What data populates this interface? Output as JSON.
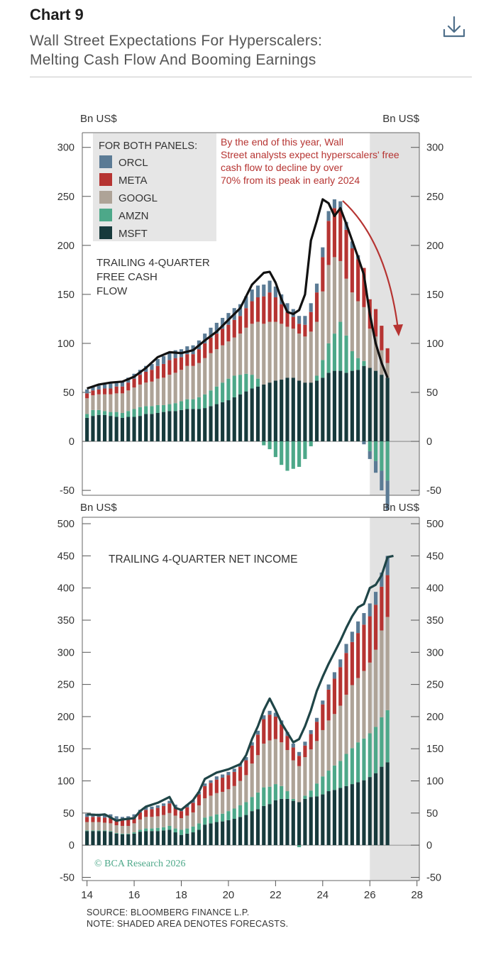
{
  "header": {
    "chart_label": "Chart 9",
    "title_line1": "Wall Street Expectations For Hyperscalers:",
    "title_line2": "Melting Cash Flow And Booming Earnings"
  },
  "footer": {
    "source": "SOURCE: BLOOMBERG FINANCE L.P.",
    "note": "NOTE: SHADED AREA DENOTES FORECASTS."
  },
  "watermark": "© BCA Research 2026",
  "colors": {
    "ORCL": "#5b7b95",
    "META": "#b63432",
    "GOOGL": "#aea397",
    "AMZN": "#4da889",
    "MSFT": "#173a3c",
    "total_line_top": "#111111",
    "total_line_bottom": "#1f4547",
    "forecast_shade": "#e2e2e2",
    "annotation": "#b63432"
  },
  "chart_data": [
    {
      "type": "bar",
      "stacked": true,
      "panel": "top",
      "title": "TRAILING 4-QUARTER FREE CASH FLOW",
      "ylabel_left": "Bn US$",
      "ylabel_right": "Bn US$",
      "ylim": [
        -55,
        315
      ],
      "yticks": [
        -50,
        0,
        50,
        100,
        150,
        200,
        250,
        300
      ],
      "forecast_from": 26,
      "legend_title": "FOR BOTH PANELS:",
      "legend": [
        "ORCL",
        "META",
        "GOOGL",
        "AMZN",
        "MSFT"
      ],
      "annotation": "By the end of this year, Wall Street analysts expect hyperscalers' free cash flow to decline by over 70% from its peak in early 2024",
      "x": [
        14.0,
        14.25,
        14.5,
        14.75,
        15.0,
        15.25,
        15.5,
        15.75,
        16.0,
        16.25,
        16.5,
        16.75,
        17.0,
        17.25,
        17.5,
        17.75,
        18.0,
        18.25,
        18.5,
        18.75,
        19.0,
        19.25,
        19.5,
        19.75,
        20.0,
        20.25,
        20.5,
        20.75,
        21.0,
        21.25,
        21.5,
        21.75,
        22.0,
        22.25,
        22.5,
        22.75,
        23.0,
        23.25,
        23.5,
        23.75,
        24.0,
        24.25,
        24.5,
        24.75,
        25.0,
        25.25,
        25.5,
        25.75,
        26.0,
        26.25,
        26.5,
        26.75
      ],
      "series": [
        {
          "name": "MSFT",
          "values": [
            24,
            26,
            27,
            27,
            26,
            25,
            24,
            25,
            25,
            26,
            28,
            28,
            29,
            30,
            31,
            31,
            32,
            33,
            33,
            33,
            34,
            36,
            38,
            40,
            42,
            45,
            48,
            51,
            54,
            56,
            58,
            60,
            62,
            63,
            65,
            65,
            62,
            60,
            60,
            62,
            65,
            70,
            72,
            72,
            70,
            72,
            73,
            77,
            75,
            72,
            68,
            65
          ]
        },
        {
          "name": "AMZN",
          "values": [
            4,
            6,
            5,
            4,
            4,
            5,
            5,
            6,
            8,
            9,
            8,
            8,
            8,
            7,
            7,
            8,
            9,
            10,
            10,
            12,
            14,
            16,
            18,
            20,
            22,
            22,
            20,
            18,
            14,
            8,
            -4,
            -8,
            -16,
            -24,
            -30,
            -28,
            -26,
            -18,
            -5,
            5,
            18,
            30,
            38,
            50,
            38,
            20,
            12,
            5,
            -10,
            -20,
            -30,
            -40
          ]
        },
        {
          "name": "GOOGL",
          "values": [
            16,
            15,
            16,
            17,
            18,
            19,
            20,
            21,
            22,
            23,
            24,
            25,
            27,
            28,
            30,
            31,
            32,
            34,
            34,
            35,
            37,
            38,
            38,
            38,
            38,
            39,
            42,
            47,
            52,
            58,
            62,
            62,
            60,
            57,
            52,
            50,
            48,
            47,
            52,
            55,
            70,
            80,
            78,
            62,
            58,
            60,
            58,
            55,
            40,
            35,
            25,
            15
          ]
        },
        {
          "name": "META",
          "values": [
            5,
            5,
            5,
            6,
            6,
            7,
            7,
            8,
            9,
            10,
            11,
            12,
            13,
            14,
            15,
            15,
            13,
            12,
            12,
            14,
            15,
            16,
            16,
            17,
            17,
            18,
            18,
            20,
            23,
            25,
            28,
            30,
            25,
            20,
            15,
            12,
            10,
            12,
            20,
            30,
            35,
            45,
            50,
            52,
            50,
            45,
            43,
            40,
            30,
            28,
            25,
            15
          ]
        },
        {
          "name": "ORCL",
          "values": [
            4,
            4,
            4,
            4,
            5,
            5,
            5,
            5,
            5,
            5,
            6,
            6,
            7,
            8,
            8,
            8,
            8,
            8,
            9,
            9,
            10,
            10,
            11,
            11,
            12,
            12,
            12,
            12,
            12,
            12,
            12,
            12,
            11,
            10,
            9,
            8,
            8,
            9,
            9,
            9,
            10,
            10,
            9,
            9,
            8,
            7,
            4,
            -3,
            -8,
            -12,
            -20,
            -30
          ]
        }
      ],
      "total_line_points": [
        [
          14.0,
          54
        ],
        [
          14.5,
          58
        ],
        [
          15.0,
          60
        ],
        [
          15.5,
          61
        ],
        [
          16.0,
          66
        ],
        [
          16.5,
          75
        ],
        [
          17.0,
          86
        ],
        [
          17.5,
          91
        ],
        [
          18.0,
          90
        ],
        [
          18.5,
          93
        ],
        [
          19.0,
          103
        ],
        [
          19.5,
          112
        ],
        [
          20.0,
          124
        ],
        [
          20.5,
          136
        ],
        [
          21.0,
          160
        ],
        [
          21.5,
          172
        ],
        [
          21.75,
          173
        ],
        [
          22.0,
          162
        ],
        [
          22.25,
          145
        ],
        [
          22.5,
          132
        ],
        [
          22.75,
          130
        ],
        [
          23.0,
          134
        ],
        [
          23.25,
          150
        ],
        [
          23.5,
          205
        ],
        [
          23.75,
          225
        ],
        [
          24.0,
          247
        ],
        [
          24.25,
          243
        ],
        [
          24.5,
          230
        ],
        [
          24.75,
          238
        ],
        [
          25.0,
          222
        ],
        [
          25.25,
          205
        ],
        [
          25.5,
          188
        ],
        [
          25.75,
          170
        ],
        [
          26.0,
          130
        ],
        [
          26.25,
          100
        ],
        [
          26.5,
          80
        ],
        [
          26.75,
          65
        ]
      ]
    },
    {
      "type": "bar",
      "stacked": true,
      "panel": "bottom",
      "title": "TRAILING 4-QUARTER NET INCOME",
      "ylabel_left": "Bn US$",
      "ylabel_right": "Bn US$",
      "ylim": [
        -55,
        510
      ],
      "yticks": [
        -50,
        0,
        50,
        100,
        150,
        200,
        250,
        300,
        350,
        400,
        450,
        500
      ],
      "xticks": [
        14,
        16,
        18,
        20,
        22,
        24,
        26,
        28
      ],
      "xlim": [
        13.8,
        28.1
      ],
      "forecast_from": 26,
      "x": [
        14.0,
        14.25,
        14.5,
        14.75,
        15.0,
        15.25,
        15.5,
        15.75,
        16.0,
        16.25,
        16.5,
        16.75,
        17.0,
        17.25,
        17.5,
        17.75,
        18.0,
        18.25,
        18.5,
        18.75,
        19.0,
        19.25,
        19.5,
        19.75,
        20.0,
        20.25,
        20.5,
        20.75,
        21.0,
        21.25,
        21.5,
        21.75,
        22.0,
        22.25,
        22.5,
        22.75,
        23.0,
        23.25,
        23.5,
        23.75,
        24.0,
        24.25,
        24.5,
        24.75,
        25.0,
        25.25,
        25.5,
        25.75,
        26.0,
        26.25,
        26.5,
        26.75
      ],
      "series": [
        {
          "name": "MSFT",
          "values": [
            22,
            22,
            22,
            22,
            21,
            18,
            17,
            17,
            18,
            21,
            22,
            22,
            22,
            23,
            24,
            20,
            16,
            18,
            20,
            24,
            32,
            34,
            36,
            37,
            39,
            41,
            44,
            47,
            53,
            56,
            61,
            64,
            70,
            72,
            72,
            69,
            67,
            72,
            75,
            76,
            79,
            84,
            86,
            89,
            92,
            95,
            98,
            101,
            106,
            112,
            122,
            129
          ]
        },
        {
          "name": "AMZN",
          "values": [
            1,
            1,
            1,
            1,
            1,
            1,
            1,
            1,
            2,
            3,
            4,
            4,
            5,
            5,
            6,
            6,
            8,
            8,
            9,
            10,
            11,
            11,
            12,
            12,
            14,
            16,
            18,
            20,
            22,
            26,
            29,
            27,
            25,
            20,
            12,
            3,
            -3,
            5,
            10,
            20,
            28,
            32,
            38,
            42,
            50,
            56,
            62,
            65,
            68,
            72,
            77,
            81
          ]
        },
        {
          "name": "GOOGL",
          "values": [
            13,
            13,
            13,
            12,
            12,
            12,
            12,
            12,
            14,
            16,
            18,
            18,
            18,
            19,
            20,
            20,
            18,
            20,
            22,
            28,
            30,
            32,
            33,
            34,
            34,
            35,
            38,
            42,
            52,
            58,
            68,
            72,
            70,
            68,
            64,
            60,
            56,
            60,
            64,
            66,
            72,
            78,
            80,
            86,
            92,
            98,
            100,
            105,
            110,
            120,
            135,
            145
          ]
        },
        {
          "name": "META",
          "values": [
            8,
            8,
            8,
            8,
            9,
            9,
            9,
            10,
            10,
            11,
            11,
            12,
            13,
            14,
            15,
            13,
            11,
            13,
            15,
            17,
            19,
            20,
            21,
            22,
            22,
            22,
            22,
            23,
            28,
            32,
            38,
            40,
            35,
            28,
            22,
            20,
            16,
            18,
            24,
            30,
            40,
            48,
            55,
            60,
            65,
            67,
            70,
            72,
            72,
            70,
            68,
            65
          ]
        },
        {
          "name": "ORCL",
          "values": [
            5,
            5,
            5,
            5,
            5,
            5,
            5,
            5,
            4,
            4,
            4,
            4,
            4,
            4,
            4,
            4,
            4,
            4,
            4,
            4,
            4,
            4,
            5,
            5,
            5,
            5,
            5,
            5,
            5,
            6,
            6,
            6,
            6,
            6,
            6,
            6,
            6,
            6,
            6,
            6,
            6,
            8,
            10,
            12,
            14,
            16,
            18,
            18,
            20,
            20,
            22,
            30
          ]
        }
      ],
      "total_line_points": [
        [
          14.0,
          48
        ],
        [
          14.5,
          47
        ],
        [
          14.75,
          48
        ],
        [
          15.0,
          43
        ],
        [
          15.25,
          38
        ],
        [
          15.5,
          40
        ],
        [
          16.0,
          42
        ],
        [
          16.25,
          53
        ],
        [
          16.5,
          60
        ],
        [
          17.0,
          66
        ],
        [
          17.5,
          75
        ],
        [
          17.75,
          58
        ],
        [
          18.0,
          55
        ],
        [
          18.5,
          70
        ],
        [
          18.75,
          83
        ],
        [
          19.0,
          103
        ],
        [
          19.5,
          113
        ],
        [
          20.0,
          118
        ],
        [
          20.5,
          126
        ],
        [
          20.75,
          140
        ],
        [
          21.0,
          165
        ],
        [
          21.25,
          185
        ],
        [
          21.5,
          210
        ],
        [
          21.75,
          228
        ],
        [
          22.0,
          210
        ],
        [
          22.25,
          190
        ],
        [
          22.5,
          175
        ],
        [
          22.75,
          160
        ],
        [
          23.0,
          165
        ],
        [
          23.25,
          185
        ],
        [
          23.5,
          210
        ],
        [
          23.75,
          240
        ],
        [
          24.0,
          262
        ],
        [
          24.25,
          282
        ],
        [
          24.5,
          300
        ],
        [
          24.75,
          318
        ],
        [
          25.0,
          338
        ],
        [
          25.25,
          356
        ],
        [
          25.5,
          370
        ],
        [
          25.75,
          375
        ],
        [
          26.0,
          400
        ],
        [
          26.25,
          405
        ],
        [
          26.5,
          420
        ],
        [
          26.75,
          448
        ],
        [
          27.0,
          450
        ]
      ]
    }
  ]
}
